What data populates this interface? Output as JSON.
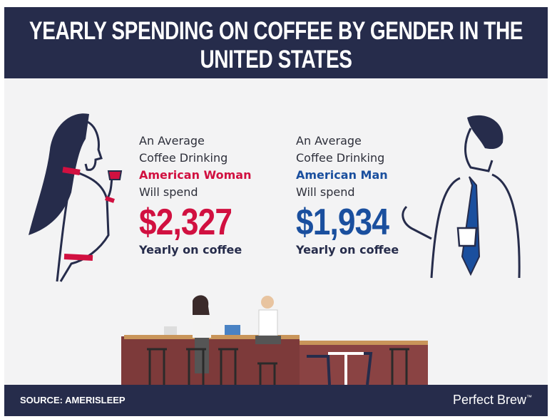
{
  "header": {
    "title": "YEARLY SPENDING ON COFFEE BY GENDER IN THE UNITED STATES"
  },
  "woman": {
    "lines": [
      "An Average",
      "Coffee Drinking"
    ],
    "who": "American Woman",
    "verb": "Will spend",
    "amount": "$2,327",
    "period": "Yearly on coffee"
  },
  "man": {
    "lines": [
      "An Average",
      "Coffee Drinking"
    ],
    "who": "American Man",
    "verb": "Will spend",
    "amount": "$1,934",
    "period": "Yearly on coffee"
  },
  "footer": {
    "source": "SOURCE: AMERISLEEP",
    "brand": "Perfect Brew",
    "trademark": "™"
  }
}
